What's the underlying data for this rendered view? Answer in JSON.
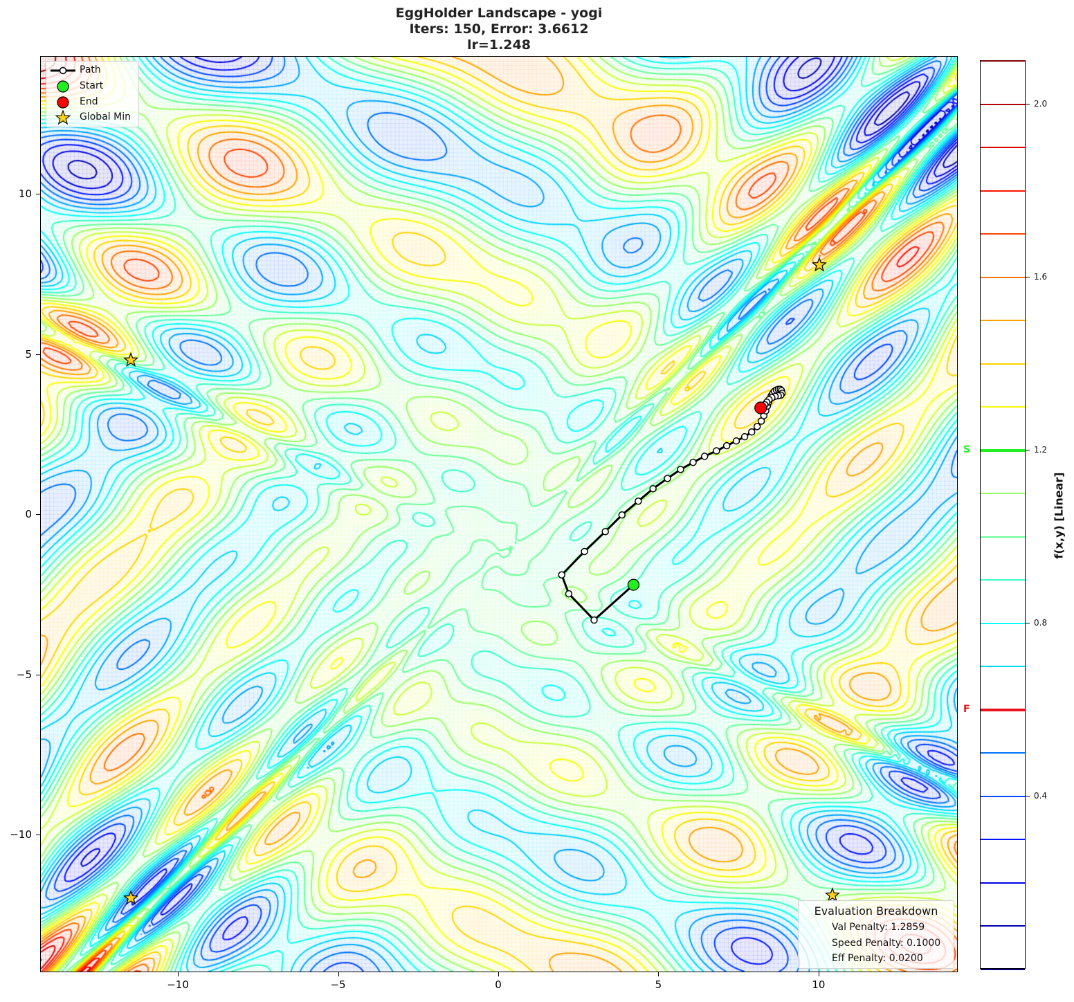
{
  "title": {
    "line1": "EggHolder Landscape - yogi",
    "line2": "Iters: 150, Error: 3.6612",
    "line3": "lr=1.248"
  },
  "chart_data": {
    "type": "contour",
    "title": "EggHolder Landscape - yogi\nIters: 150, Error: 3.6612\nlr=1.248",
    "xlabel": "",
    "ylabel": "",
    "xlim": [
      -14.3,
      14.3
    ],
    "ylim": [
      -14.25,
      14.3
    ],
    "x_ticks": [
      -10,
      -5,
      0,
      5,
      10
    ],
    "y_ticks": [
      -10,
      -5,
      0,
      5,
      10
    ],
    "x_tick_labels": [
      "−10",
      "−5",
      "0",
      "5",
      "10"
    ],
    "y_tick_labels": [
      "−10",
      "−5",
      "0",
      "5",
      "10"
    ],
    "grid": false,
    "colormap": "jet",
    "contour_levels": [
      0.0,
      0.1,
      0.2,
      0.3,
      0.4,
      0.5,
      0.6,
      0.7,
      0.8,
      0.9,
      1.0,
      1.1,
      1.2,
      1.3,
      1.4,
      1.5,
      1.6,
      1.7,
      1.8,
      1.9,
      2.0,
      2.1
    ],
    "colorbar": {
      "label": "f(x,y) [Linear]",
      "ticks": [
        0.4,
        0.8,
        1.2,
        1.6,
        2.0
      ],
      "tick_labels": [
        "0.4",
        "0.8",
        "1.2",
        "1.6",
        "2.0"
      ],
      "range": [
        0.0,
        2.1
      ],
      "markers": [
        {
          "label": "S",
          "value": 1.2,
          "color": "#22ee22"
        },
        {
          "label": "F",
          "value": 0.6,
          "color": "#e8141e"
        }
      ]
    },
    "legend": {
      "position": "upper left",
      "entries": [
        {
          "label": "Path",
          "symbol": "line-circle"
        },
        {
          "label": "Start",
          "symbol": "circle",
          "color": "#22ee22"
        },
        {
          "label": "End",
          "symbol": "circle",
          "color": "#ff0000"
        },
        {
          "label": "Global Min",
          "symbol": "star",
          "color": "#ffd21f"
        }
      ]
    },
    "path": {
      "x": [
        4.2,
        2.97,
        2.18,
        1.96,
        2.67,
        3.32,
        3.84,
        4.35,
        4.81,
        5.26,
        5.67,
        6.06,
        6.42,
        6.79,
        7.11,
        7.41,
        7.67,
        7.89,
        8.06,
        8.19,
        8.27,
        8.33,
        8.38,
        8.42,
        8.46,
        8.5,
        8.55,
        8.6,
        8.66,
        8.72,
        8.78,
        8.82,
        8.84,
        8.8,
        8.72,
        8.62,
        8.52,
        8.43,
        8.36,
        8.3,
        8.25,
        8.2,
        8.17
      ],
      "y": [
        -2.18,
        -3.28,
        -2.46,
        -1.87,
        -1.14,
        -0.52,
        0.0,
        0.43,
        0.82,
        1.14,
        1.42,
        1.64,
        1.83,
        2.0,
        2.16,
        2.31,
        2.44,
        2.59,
        2.76,
        2.93,
        3.1,
        3.25,
        3.4,
        3.52,
        3.62,
        3.72,
        3.8,
        3.86,
        3.9,
        3.92,
        3.92,
        3.88,
        3.8,
        3.74,
        3.72,
        3.7,
        3.66,
        3.6,
        3.52,
        3.44,
        3.36,
        3.3,
        3.34
      ]
    },
    "start": {
      "x": 4.2,
      "y": -2.18
    },
    "end": {
      "x": 8.17,
      "y": 3.34
    },
    "global_minima": [
      {
        "x": -11.49,
        "y": 4.83
      },
      {
        "x": 10.0,
        "y": 7.8
      },
      {
        "x": -11.49,
        "y": -11.96
      },
      {
        "x": 10.41,
        "y": -11.87
      }
    ],
    "annotation": {
      "title": "Evaluation Breakdown",
      "lines": [
        "Val Penalty: 1.2859",
        "Speed Penalty: 0.1000",
        "Eff Penalty: 0.0200"
      ]
    }
  },
  "legend": {
    "path_label": "Path",
    "start_label": "Start",
    "end_label": "End",
    "global_min_label": "Global Min"
  },
  "evaluation": {
    "title": "Evaluation Breakdown",
    "val_penalty": "Val Penalty: 1.2859",
    "speed_penalty": "Speed Penalty: 0.1000",
    "eff_penalty": "Eff Penalty: 0.0200"
  },
  "colorbar": {
    "label": "f(x,y) [Linear]",
    "start_marker": "S",
    "final_marker": "F"
  },
  "colors": {
    "start": "#22ee22",
    "end": "#ff0000",
    "star": "#ffd21f",
    "path": "#000000",
    "s_marker": "#22ee22",
    "f_marker": "#e8141e"
  }
}
